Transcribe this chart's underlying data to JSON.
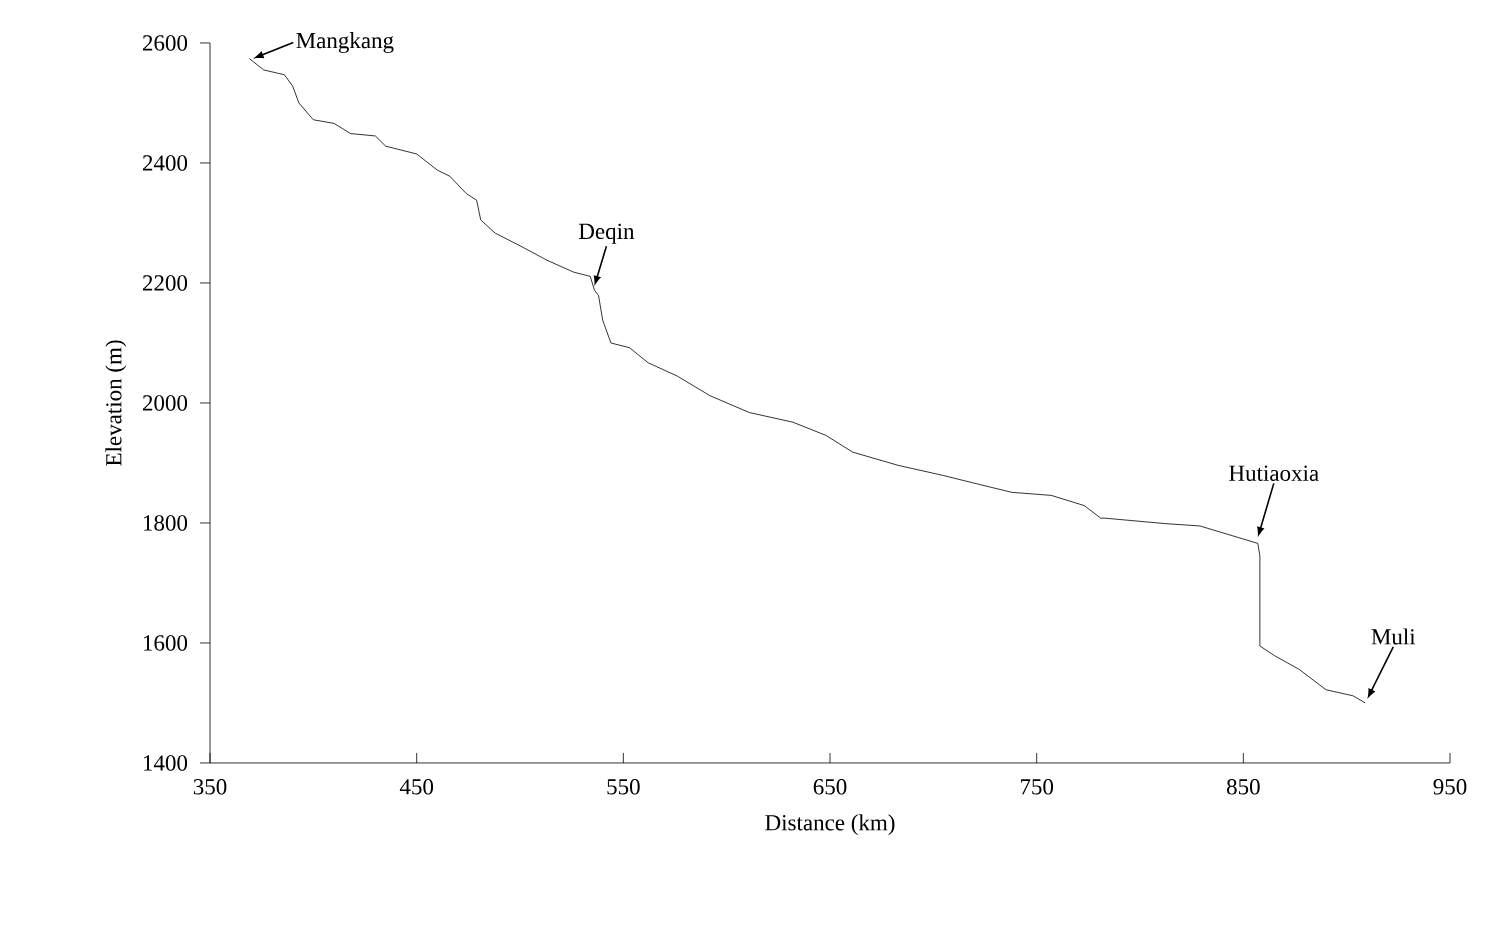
{
  "chart_data": {
    "type": "line",
    "xlabel": "Distance (km)",
    "ylabel": "Elevation (m)",
    "xlim": [
      350,
      950
    ],
    "ylim": [
      1400,
      2600
    ],
    "xticks": [
      350,
      450,
      550,
      650,
      750,
      850,
      950
    ],
    "yticks": [
      1400,
      1600,
      1800,
      2000,
      2200,
      2400,
      2600
    ],
    "marker": "none",
    "line_style": "solid",
    "grid": false,
    "series": [
      {
        "color": "#000000",
        "x": [
          369,
          376,
          386,
          390,
          393,
          400,
          410,
          418,
          430,
          435,
          450,
          460,
          466,
          474,
          479,
          481,
          488,
          500,
          513,
          526,
          534,
          536,
          538,
          540,
          544,
          553,
          562,
          576,
          592,
          611,
          632,
          648,
          661,
          683,
          705,
          719,
          738,
          757,
          773,
          781,
          783,
          812,
          829,
          857,
          858,
          858,
          865,
          877,
          890,
          903,
          909
        ],
        "values": [
          2574,
          2555,
          2547,
          2528,
          2500,
          2472,
          2466,
          2449,
          2445,
          2428,
          2415,
          2388,
          2378,
          2349,
          2338,
          2305,
          2283,
          2262,
          2238,
          2218,
          2211,
          2188,
          2179,
          2138,
          2100,
          2092,
          2067,
          2045,
          2012,
          1984,
          1968,
          1946,
          1918,
          1896,
          1879,
          1867,
          1851,
          1846,
          1829,
          1808,
          1808,
          1799,
          1795,
          1766,
          1745,
          1595,
          1579,
          1556,
          1522,
          1512,
          1500
        ]
      }
    ],
    "annotations": [
      {
        "text": "Mangkang",
        "x": 369,
        "y": 2574
      },
      {
        "text": "Deqin",
        "x": 536,
        "y": 2188
      },
      {
        "text": "Hutiaoxia",
        "x": 857,
        "y": 1766
      },
      {
        "text": "Muli",
        "x": 909,
        "y": 1500
      }
    ]
  }
}
